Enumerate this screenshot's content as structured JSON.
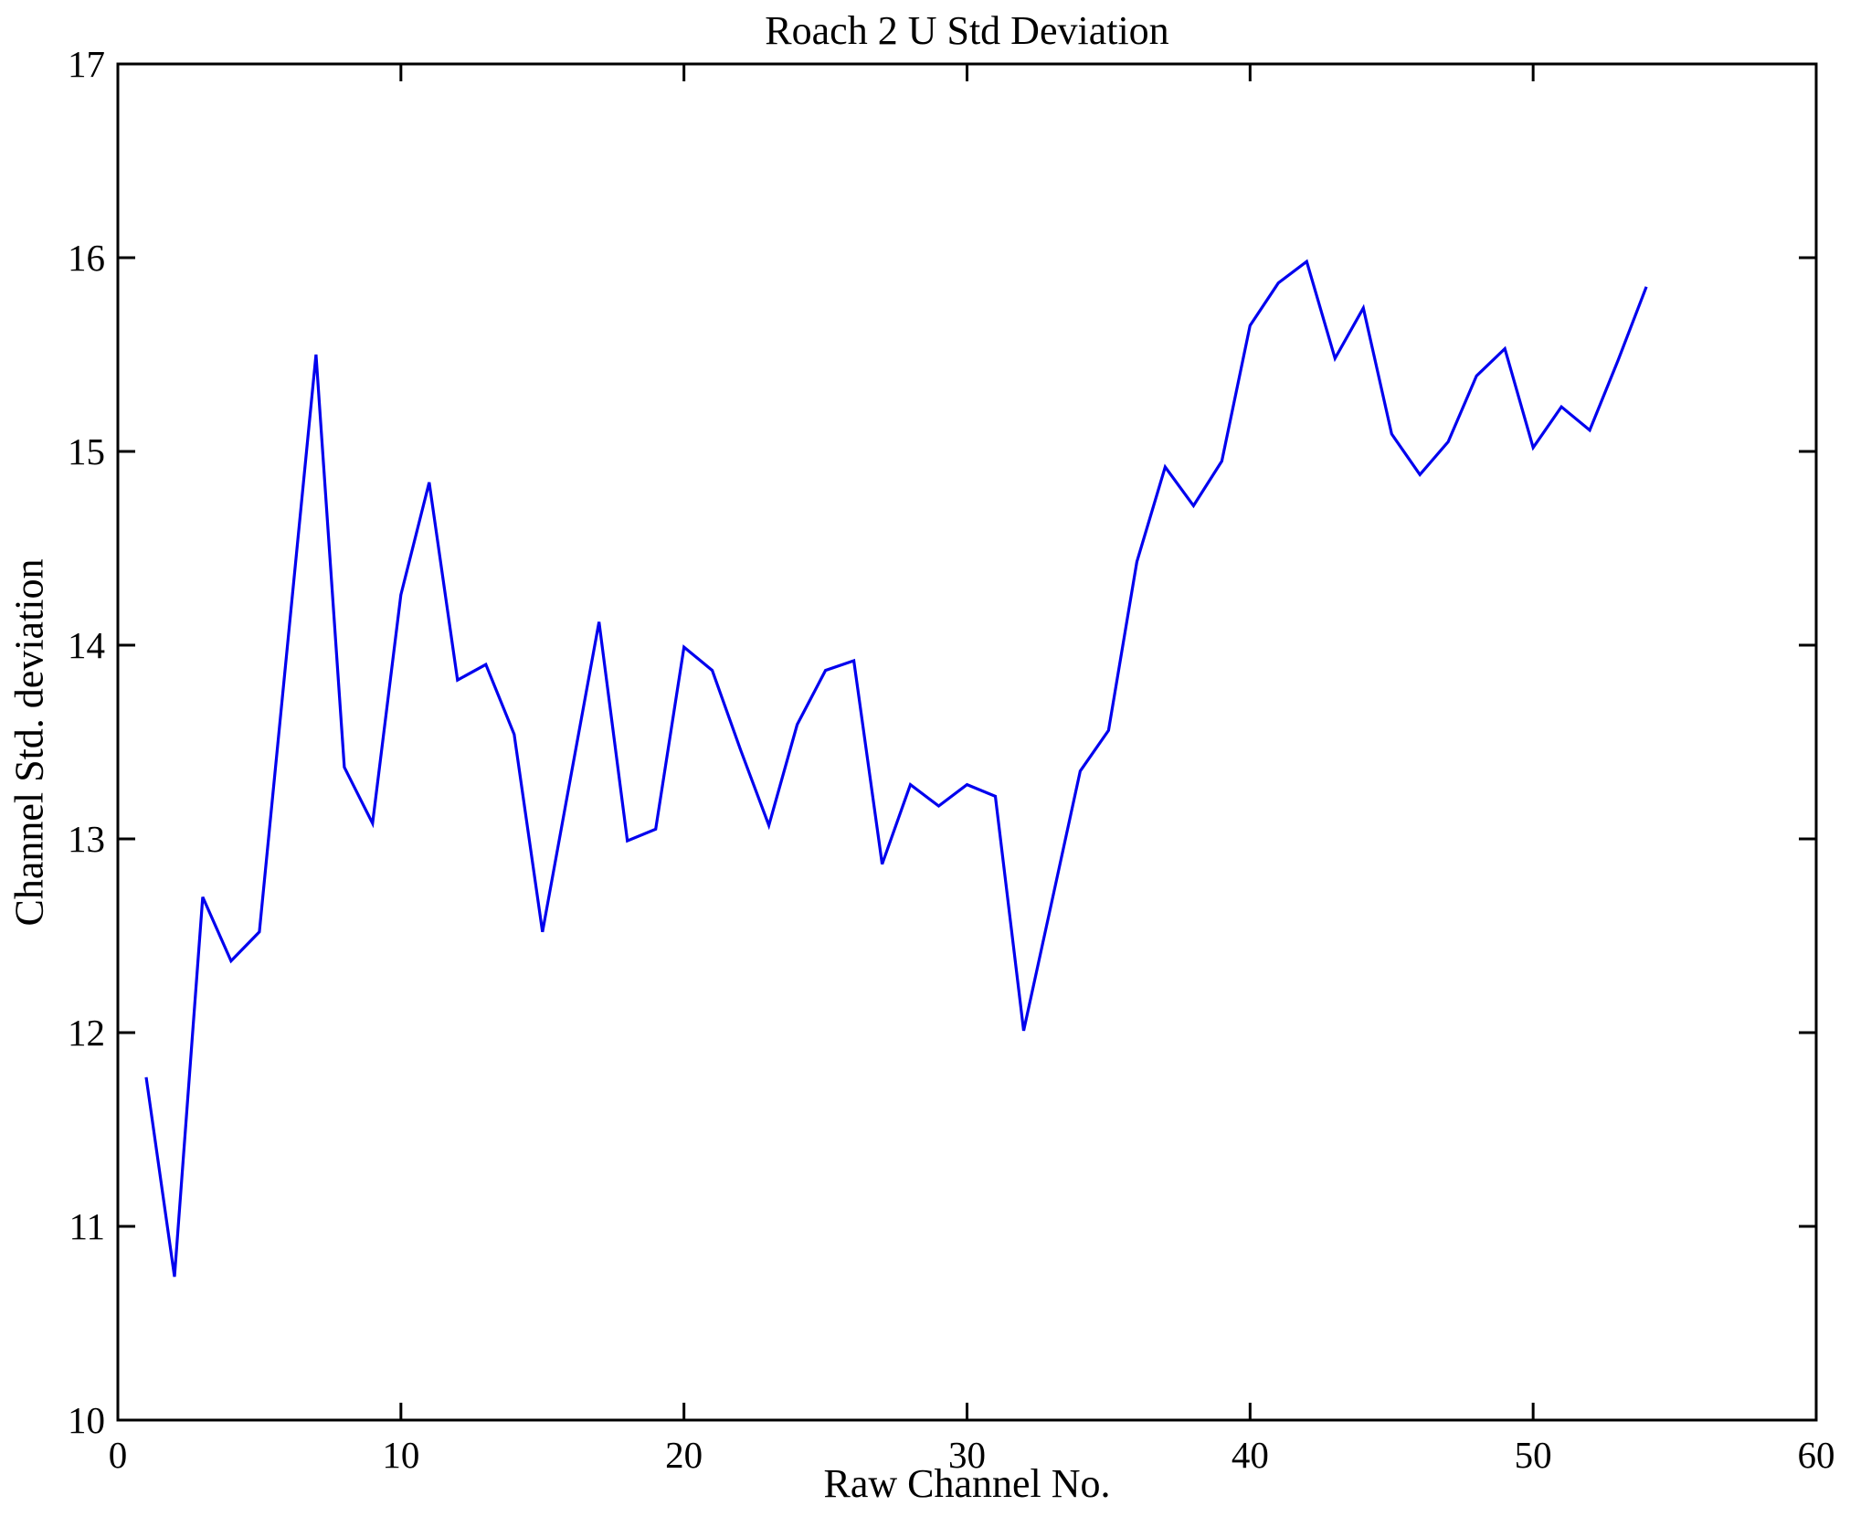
{
  "chart_data": {
    "type": "line",
    "title": "Roach 2 U Std Deviation",
    "xlabel": "Raw Channel No.",
    "ylabel": "Channel Std. deviation",
    "xlim": [
      0,
      60
    ],
    "ylim": [
      10,
      17
    ],
    "x_ticks": [
      0,
      10,
      20,
      30,
      40,
      50,
      60
    ],
    "y_ticks": [
      10,
      11,
      12,
      13,
      14,
      15,
      16,
      17
    ],
    "grid": false,
    "box": true,
    "legend": null,
    "line_color": "#0000EE",
    "axis_color": "#000000",
    "series": [
      {
        "name": "Channel Std. deviation",
        "x": [
          1,
          2,
          3,
          4,
          5,
          6,
          7,
          8,
          9,
          10,
          11,
          12,
          13,
          14,
          15,
          16,
          17,
          18,
          19,
          20,
          21,
          22,
          23,
          24,
          25,
          26,
          27,
          28,
          29,
          30,
          31,
          32,
          33,
          34,
          35,
          36,
          37,
          38,
          39,
          40,
          41,
          42,
          43,
          44,
          45,
          46,
          47,
          48,
          49,
          50,
          51,
          52,
          53,
          54
        ],
        "y": [
          11.77,
          10.74,
          12.7,
          12.37,
          12.52,
          14.01,
          15.5,
          13.37,
          13.08,
          14.26,
          14.84,
          13.82,
          13.9,
          13.54,
          12.52,
          13.32,
          14.12,
          12.99,
          13.05,
          13.99,
          13.87,
          13.46,
          13.07,
          13.59,
          13.87,
          13.92,
          12.87,
          13.28,
          13.17,
          13.28,
          13.22,
          12.01,
          12.68,
          13.35,
          13.56,
          14.43,
          14.92,
          14.72,
          14.95,
          15.65,
          15.87,
          15.98,
          15.48,
          15.74,
          15.09,
          14.88,
          15.05,
          15.39,
          15.53,
          15.02,
          15.23,
          15.11,
          15.47,
          15.85
        ]
      }
    ]
  }
}
